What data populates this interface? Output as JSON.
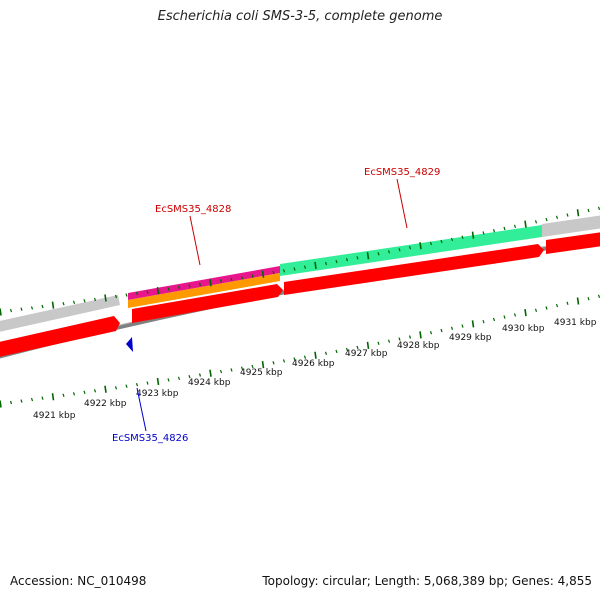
{
  "title": "Escherichia coli SMS-3-5, complete genome",
  "footer": {
    "accession": "Accession: NC_010498",
    "topology": "Topology: circular; Length: 5,068,389 bp; Genes: 4,855"
  },
  "scale": {
    "unit": "kbp",
    "ticks": [
      {
        "label": "4921 kbp"
      },
      {
        "label": "4922 kbp"
      },
      {
        "label": "4923 kbp"
      },
      {
        "label": "4924 kbp"
      },
      {
        "label": "4925 kbp"
      },
      {
        "label": "4926 kbp"
      },
      {
        "label": "4927 kbp"
      },
      {
        "label": "4928 kbp"
      },
      {
        "label": "4929 kbp"
      },
      {
        "label": "4930 kbp"
      },
      {
        "label": "4931 kbp"
      }
    ]
  },
  "gene_labels": [
    {
      "text": "EcSMS35_4828",
      "color": "#cc0000"
    },
    {
      "text": "EcSMS35_4829",
      "color": "#cc0000"
    },
    {
      "text": "EcSMS35_4826",
      "color": "#0000cc"
    }
  ],
  "colors": {
    "cds_forward": "#ff0000",
    "rna_or_other": "#c8c8c8",
    "backbone": "#808080",
    "tick": "#006600",
    "magenta_feature": "#e8168c",
    "orange_feature": "#ff9900",
    "green_feature": "#33ee99",
    "reverse_marker": "#0000cc"
  }
}
